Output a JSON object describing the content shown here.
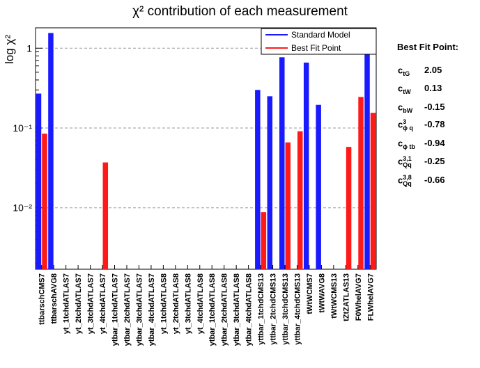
{
  "chart_data": {
    "type": "bar",
    "title": "χ² contribution of each measurement",
    "ylabel": "log χ²",
    "xlabel": "",
    "yscale": "log",
    "ylim": [
      0.0017,
      1.8
    ],
    "yticks": [
      {
        "value": 0.01,
        "label": "10⁻²"
      },
      {
        "value": 0.1,
        "label": "10⁻¹"
      },
      {
        "value": 1,
        "label": "1"
      }
    ],
    "grid": "horizontal dashed at decades",
    "legend_position": "top-right",
    "categories": [
      "ttbarschCMS7",
      "ttbarschAVG8",
      "yt_1tchdATLAS7",
      "yt_2tchdATLAS7",
      "yt_3tchdATLAS7",
      "yt_4tchdATLAS7",
      "ytbar_1tchdATLAS7",
      "ytbar_2tchdATLAS7",
      "ytbar_3tchdATLAS7",
      "ytbar_4tchdATLAS7",
      "yt_1tchdATLAS8",
      "yt_2tchdATLAS8",
      "yt_3tchdATLAS8",
      "yt_4tchdATLAS8",
      "ytbar_1tchdATLAS8",
      "ytbar_2tchdATLAS8",
      "ytbar_3tchdATLAS8",
      "ytbar_4tchdATLAS8",
      "yttbar_1tchdCMS13",
      "yttbar_2tchdCMS13",
      "yttbar_3tchdCMS13",
      "yttbar_4tchdCMS13",
      "tWtWCMS7",
      "tWtWAVG8",
      "tWtWCMS13",
      "tZtZATLAS13",
      "F0WhelAVG7",
      "FLWhelAVG7"
    ],
    "series": [
      {
        "name": "Standard Model",
        "color": "#1a1aff",
        "values": [
          0.27,
          1.55,
          null,
          null,
          null,
          null,
          null,
          null,
          null,
          null,
          null,
          null,
          null,
          null,
          null,
          null,
          null,
          null,
          0.3,
          0.25,
          0.77,
          null,
          0.66,
          0.195,
          null,
          null,
          null,
          0.85
        ]
      },
      {
        "name": "Best Fit Point",
        "color": "#ff1a1a",
        "values": [
          0.085,
          null,
          null,
          null,
          null,
          0.037,
          null,
          null,
          null,
          null,
          null,
          null,
          null,
          null,
          null,
          null,
          null,
          null,
          0.0088,
          null,
          0.066,
          0.091,
          null,
          null,
          null,
          0.058,
          0.245,
          0.155
        ]
      }
    ]
  },
  "best_fit": {
    "heading": "Best Fit Point:",
    "params": [
      {
        "base": "c",
        "sub": "tG",
        "sup": "",
        "value": "2.05"
      },
      {
        "base": "c",
        "sub": "tW",
        "sup": "",
        "value": "0.13"
      },
      {
        "base": "c",
        "sub": "bW",
        "sup": "",
        "value": "-0.15"
      },
      {
        "base": "c",
        "sub": "ϕ q",
        "sup": "3",
        "value": "-0.78"
      },
      {
        "base": "c",
        "sub": "ϕ tb",
        "sup": "",
        "value": "-0.94"
      },
      {
        "base": "c",
        "sub": "Qq",
        "sup": "3,1",
        "value": "-0.25"
      },
      {
        "base": "c",
        "sub": "Qq",
        "sup": "3,8",
        "value": "-0.66"
      }
    ]
  }
}
